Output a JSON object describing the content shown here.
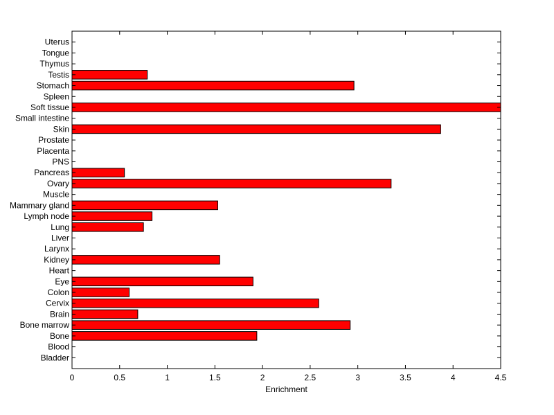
{
  "chart_data": {
    "type": "bar",
    "orientation": "horizontal",
    "title": "",
    "xlabel": "Enrichment",
    "ylabel": "",
    "xlim": [
      0,
      4.5
    ],
    "xticks": [
      0,
      0.5,
      1,
      1.5,
      2,
      2.5,
      3,
      3.5,
      4,
      4.5
    ],
    "xtick_labels": [
      "0",
      "0.5",
      "1",
      "1.5",
      "2",
      "2.5",
      "3",
      "3.5",
      "4",
      "4.5"
    ],
    "grid": false,
    "legend": "none",
    "bar_color": "#ff0000",
    "bar_edge_color": "#000000",
    "categories": [
      "Bladder",
      "Blood",
      "Bone",
      "Bone marrow",
      "Brain",
      "Cervix",
      "Colon",
      "Eye",
      "Heart",
      "Kidney",
      "Larynx",
      "Liver",
      "Lung",
      "Lymph node",
      "Mammary gland",
      "Muscle",
      "Ovary",
      "Pancreas",
      "PNS",
      "Placenta",
      "Prostate",
      "Skin",
      "Small intestine",
      "Soft tissue",
      "Spleen",
      "Stomach",
      "Testis",
      "Thymus",
      "Tongue",
      "Uterus"
    ],
    "values": [
      0,
      0,
      1.94,
      2.92,
      0.69,
      2.59,
      0.6,
      1.9,
      0,
      1.55,
      0,
      0,
      0.75,
      0.84,
      1.53,
      0,
      3.35,
      0.55,
      0,
      0,
      0,
      3.87,
      0,
      4.5,
      0,
      2.96,
      0.79,
      0,
      0,
      0
    ]
  }
}
